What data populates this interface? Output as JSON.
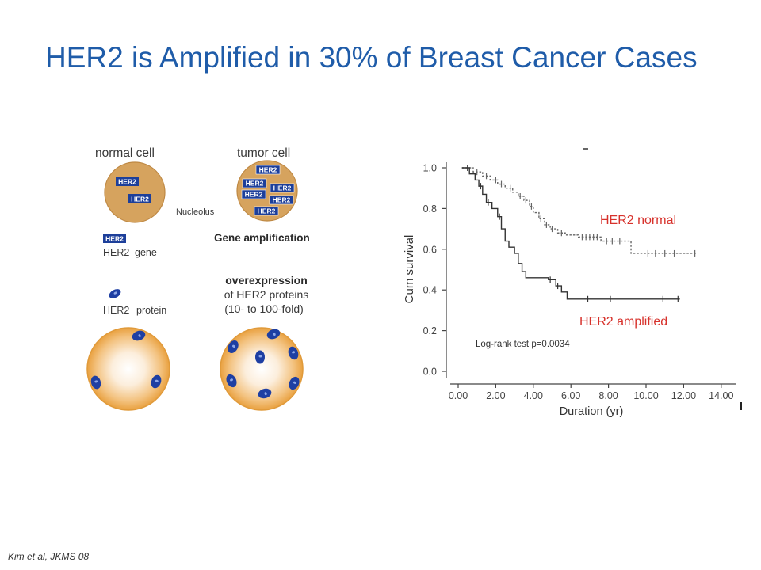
{
  "slide": {
    "title": "HER2 is Amplified in 30% of Breast Cancer Cases",
    "citation": "Kim et al, JKMS 08",
    "title_color": "#1F5CA9"
  },
  "diagram": {
    "normal_cell_label": "normal cell",
    "tumor_cell_label": "tumor cell",
    "nucleolus_label": "Nucleolus",
    "her2_badge": "HER2",
    "gene_legend_name": "HER2",
    "gene_legend_label": "gene",
    "gene_amplification_label": "Gene amplification",
    "protein_legend_name": "HER2",
    "protein_legend_label": "protein",
    "overexpression_label": "overexpression",
    "overexpression_line2": "of HER2 proteins",
    "overexpression_line3": "(10- to 100-fold)",
    "colors": {
      "nucleus": "#D6A35E",
      "her2_gene": "#1D3F9A",
      "protein": "#1E3FA3",
      "cytoplasm_edge": "#E9A140"
    }
  },
  "chart_data": {
    "type": "line",
    "step": true,
    "xlabel": "Duration (yr)",
    "ylabel": "Cum survival",
    "xlim": [
      0,
      14
    ],
    "ylim": [
      0,
      1
    ],
    "grid": false,
    "x_ticks": [
      "0.00",
      "2.00",
      "4.00",
      "6.00",
      "8.00",
      "10.00",
      "12.00",
      "14.00"
    ],
    "y_ticks": [
      "1.0",
      "0.8",
      "0.6",
      "0.4",
      "0.2",
      "0.0"
    ],
    "annotation": "Log-rank test p=0.0034",
    "series": [
      {
        "name": "HER2 normal",
        "line_color": "#666666",
        "line_style": "dotted",
        "label_color": "#D7322C",
        "time": [
          0.2,
          0.8,
          1.3,
          1.7,
          2.1,
          2.5,
          2.9,
          3.2,
          3.5,
          3.8,
          4.0,
          4.3,
          4.6,
          4.9,
          5.3,
          5.7,
          6.4,
          7.6,
          9.2,
          12.7
        ],
        "survival": [
          1.0,
          0.98,
          0.96,
          0.94,
          0.92,
          0.9,
          0.88,
          0.86,
          0.84,
          0.81,
          0.78,
          0.75,
          0.72,
          0.7,
          0.68,
          0.67,
          0.66,
          0.64,
          0.58,
          0.58
        ],
        "censored": [
          0.5,
          1.0,
          1.5,
          2.0,
          2.3,
          2.8,
          3.3,
          3.6,
          3.9,
          4.4,
          4.7,
          5.0,
          5.5,
          6.6,
          6.8,
          7.0,
          7.2,
          7.4,
          7.9,
          8.2,
          8.6,
          10.1,
          10.5,
          11.0,
          11.5,
          12.6
        ]
      },
      {
        "name": "HER2 amplified",
        "line_color": "#333333",
        "line_style": "solid",
        "label_color": "#D7322C",
        "time": [
          0.2,
          0.6,
          0.9,
          1.1,
          1.3,
          1.5,
          1.8,
          2.1,
          2.3,
          2.5,
          2.7,
          3.0,
          3.2,
          3.4,
          3.6,
          4.8,
          5.2,
          5.5,
          5.8,
          11.8
        ],
        "survival": [
          1.0,
          0.97,
          0.94,
          0.91,
          0.87,
          0.83,
          0.8,
          0.76,
          0.7,
          0.64,
          0.61,
          0.58,
          0.53,
          0.49,
          0.46,
          0.45,
          0.42,
          0.39,
          0.355,
          0.355
        ],
        "censored": [
          0.5,
          1.2,
          1.6,
          2.2,
          4.9,
          5.3,
          6.9,
          8.1,
          10.9,
          11.7
        ]
      }
    ]
  }
}
